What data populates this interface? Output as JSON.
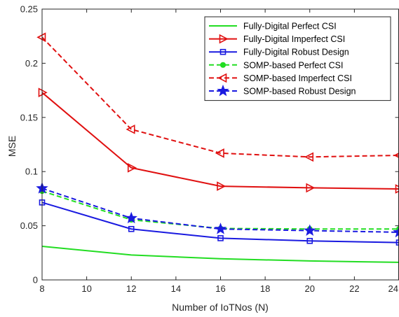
{
  "chart_data": {
    "type": "line",
    "title": "",
    "xlabel": "Number of IoTNos (N)",
    "ylabel": "MSE",
    "x": [
      8,
      12,
      16,
      20,
      24
    ],
    "xlim": [
      8,
      24
    ],
    "ylim": [
      0,
      0.25
    ],
    "xticks": [
      "8",
      "10",
      "12",
      "14",
      "16",
      "18",
      "20",
      "22",
      "24"
    ],
    "yticks": [
      "0",
      "0.05",
      "0.1",
      "0.15",
      "0.2",
      "0.25"
    ],
    "grid": false,
    "legend_position": "top-right",
    "series": [
      {
        "name": "Fully-Digital Perfect CSI",
        "values": [
          0.031,
          0.023,
          0.0195,
          0.0175,
          0.0162
        ],
        "color": "#22dd22",
        "dash": "solid",
        "marker": "none"
      },
      {
        "name": "Fully-Digital Imperfect CSI",
        "values": [
          0.173,
          0.1035,
          0.0865,
          0.085,
          0.084
        ],
        "color": "#e01010",
        "dash": "solid",
        "marker": "triangle-right"
      },
      {
        "name": "Fully-Digital Robust Design",
        "values": [
          0.0715,
          0.047,
          0.0385,
          0.036,
          0.0345
        ],
        "color": "#1a1ae0",
        "dash": "solid",
        "marker": "square"
      },
      {
        "name": "SOMP-based Perfect CSI",
        "values": [
          0.082,
          0.0555,
          0.0475,
          0.047,
          0.047
        ],
        "color": "#22dd22",
        "dash": "dashed",
        "marker": "circle"
      },
      {
        "name": "SOMP-based Imperfect CSI",
        "values": [
          0.224,
          0.139,
          0.117,
          0.1135,
          0.115
        ],
        "color": "#e01010",
        "dash": "dashed",
        "marker": "triangle-left"
      },
      {
        "name": "SOMP-based Robust Design",
        "values": [
          0.0845,
          0.057,
          0.047,
          0.0455,
          0.044
        ],
        "color": "#1a1ae0",
        "dash": "dashed",
        "marker": "star"
      }
    ]
  }
}
